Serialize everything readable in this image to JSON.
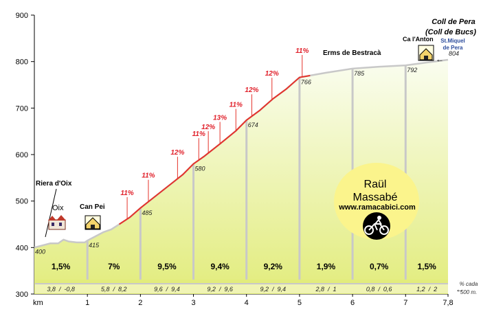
{
  "chart_data": {
    "type": "area",
    "title": "Coll de Pera",
    "subtitle": "(Coll de Bucs)",
    "xlabel": "km",
    "xlim": [
      0,
      7.8
    ],
    "ylim": [
      300,
      900
    ],
    "y_ticks": [
      900,
      800,
      700,
      600,
      500,
      400,
      300
    ],
    "x_ticks": [
      {
        "value": 1,
        "label": "1"
      },
      {
        "value": 2,
        "label": "2"
      },
      {
        "value": 3,
        "label": "3"
      },
      {
        "value": 4,
        "label": "4"
      },
      {
        "value": 5,
        "label": "5"
      },
      {
        "value": 6,
        "label": "6"
      },
      {
        "value": 7,
        "label": "7"
      },
      {
        "value": 7.8,
        "label": "7,8"
      }
    ],
    "profile": [
      [
        0,
        400
      ],
      [
        0.3,
        409
      ],
      [
        0.45,
        409
      ],
      [
        0.5,
        413
      ],
      [
        0.55,
        417
      ],
      [
        0.65,
        413
      ],
      [
        0.8,
        411
      ],
      [
        0.95,
        411
      ],
      [
        1.0,
        415
      ],
      [
        1.15,
        424
      ],
      [
        1.3,
        433
      ],
      [
        1.45,
        439
      ],
      [
        1.6,
        450
      ],
      [
        1.8,
        465
      ],
      [
        2.0,
        485
      ],
      [
        2.2,
        503
      ],
      [
        2.5,
        530
      ],
      [
        2.8,
        557
      ],
      [
        3.0,
        580
      ],
      [
        3.2,
        596
      ],
      [
        3.5,
        623
      ],
      [
        3.8,
        651
      ],
      [
        4.0,
        674
      ],
      [
        4.25,
        695
      ],
      [
        4.5,
        720
      ],
      [
        4.75,
        741
      ],
      [
        5.0,
        766
      ],
      [
        5.5,
        776
      ],
      [
        6.0,
        785
      ],
      [
        6.5,
        789
      ],
      [
        7.0,
        792
      ],
      [
        7.4,
        798
      ],
      [
        7.8,
        804
      ]
    ],
    "steep_segment": [
      1.6,
      5.2
    ],
    "km_markers": [
      {
        "km": 0,
        "elevation": 400,
        "label": "400"
      },
      {
        "km": 1,
        "elevation": 415,
        "label": "415"
      },
      {
        "km": 2,
        "elevation": 485,
        "label": "485"
      },
      {
        "km": 3,
        "elevation": 580,
        "label": "580"
      },
      {
        "km": 4,
        "elevation": 674,
        "label": "674"
      },
      {
        "km": 5,
        "elevation": 766,
        "label": "766"
      },
      {
        "km": 6,
        "elevation": 785,
        "label": "785"
      },
      {
        "km": 7,
        "elevation": 792,
        "label": "792"
      },
      {
        "km": 7.8,
        "elevation": 804,
        "label": "804"
      }
    ],
    "section_gradients": [
      "1,5%",
      "7%",
      "9,5%",
      "9,4%",
      "9,2%",
      "1,9%",
      "0,7%",
      "1,5%"
    ],
    "half_km_gradients": [
      "3,8 / -0,8",
      "5,8 / 8,2",
      "9,6 / 9,4",
      "9,2 / 9,6",
      "9,2 / 9,4",
      "2,8 / 1",
      "0,8 / 0,6",
      "1,2 / 2"
    ],
    "half_km_note": [
      "% cada",
      "500 m."
    ],
    "gradient_annotations": [
      {
        "label": "11%",
        "km": 1.75
      },
      {
        "label": "11%",
        "km": 2.15
      },
      {
        "label": "12%",
        "km": 2.7
      },
      {
        "label": "11%",
        "km": 3.1
      },
      {
        "label": "12%",
        "km": 3.28
      },
      {
        "label": "13%",
        "km": 3.5
      },
      {
        "label": "11%",
        "km": 3.8
      },
      {
        "label": "12%",
        "km": 4.1
      },
      {
        "label": "12%",
        "km": 4.48
      },
      {
        "label": "11%",
        "km": 5.05
      }
    ],
    "places": [
      {
        "label": "Riera d'Oix",
        "km": 0.35
      },
      {
        "label": "Oix",
        "km": 0.42
      },
      {
        "label": "Can Pei",
        "km": 1.15
      },
      {
        "label": "Erms de Bestracà",
        "km": 5.85
      },
      {
        "label": "Ca l'Anton",
        "km": 7.1
      },
      {
        "label": "St.Miquel",
        "km": 7.6
      },
      {
        "label": "de Pera",
        "km": 7.6
      }
    ],
    "credit": {
      "name_line1": "Raül",
      "name_line2": "Massabé",
      "website": "www.ramacabici.com"
    },
    "colors": {
      "climb": "#e5322a",
      "gradient_label": "#e0202a",
      "profile": "#c8c8c8",
      "fill_top": "#fafdf0",
      "fill_bottom": "#e2ec7c",
      "divider": "#c8c8c8",
      "credit_bg": "#fbf48c",
      "link_text": "#2c4c9c"
    }
  }
}
